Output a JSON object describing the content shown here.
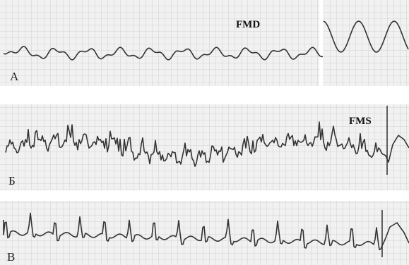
{
  "panels": [
    {
      "label": "А",
      "annotation": "FMD"
    },
    {
      "label": "Б",
      "annotation": "FMS"
    },
    {
      "label": "В"
    }
  ]
}
